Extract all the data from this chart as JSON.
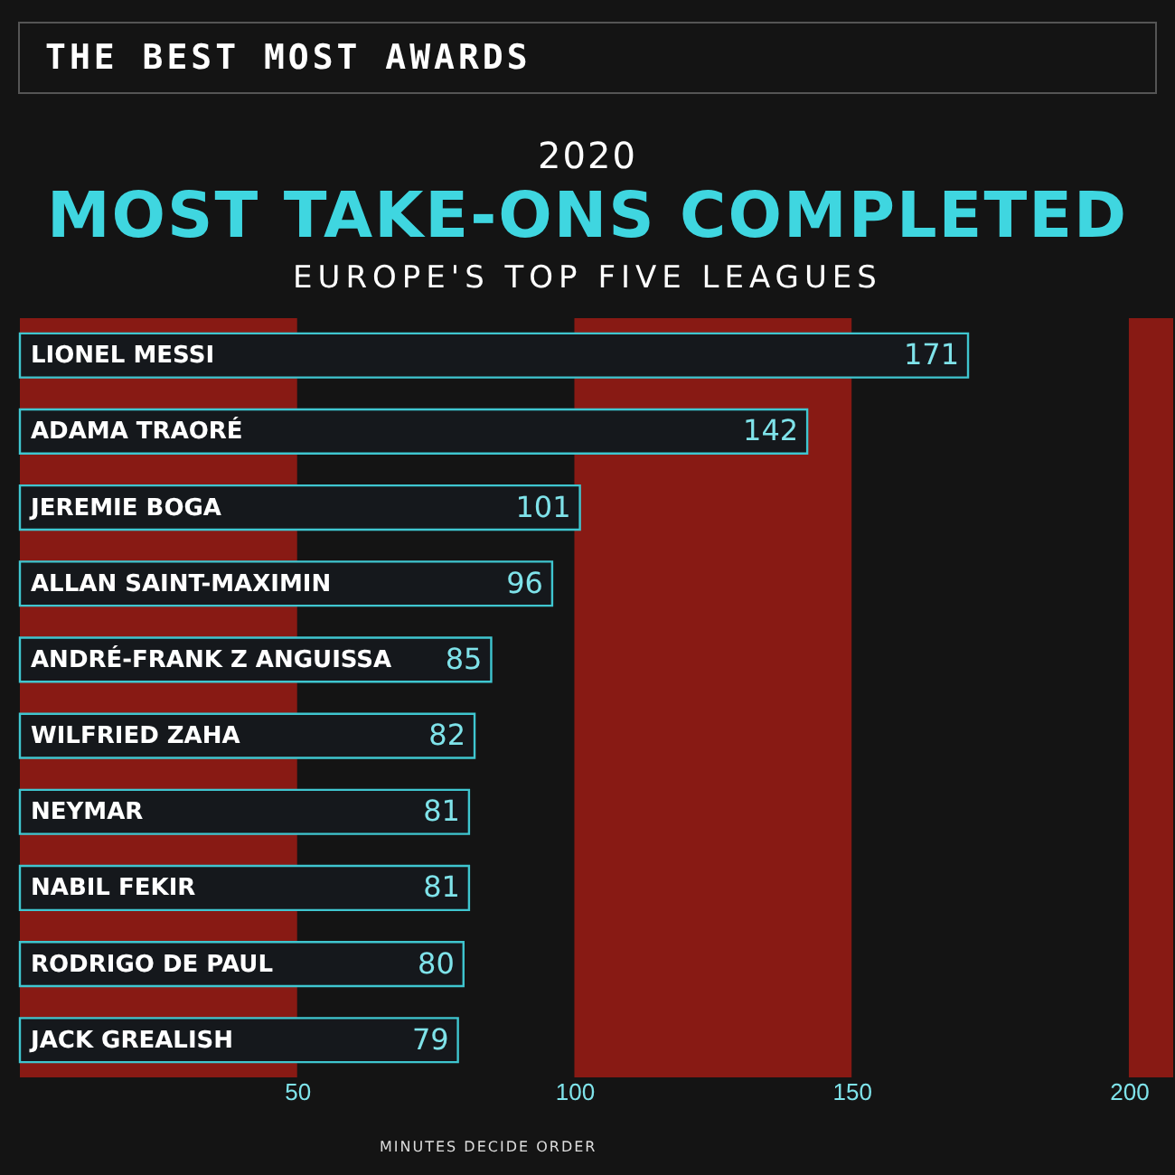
{
  "chart_data": {
    "type": "bar",
    "orientation": "horizontal",
    "title": "MOST TAKE-ONS COMPLETED",
    "subtitle": "EUROPE'S TOP FIVE LEAGUES",
    "annotations": [
      "THE BEST MOST AWARDS",
      "2020",
      "MINUTES DECIDE ORDER"
    ],
    "categories": [
      "LIONEL MESSI",
      "ADAMA TRAORÉ",
      "JEREMIE BOGA",
      "ALLAN SAINT-MAXIMIN",
      "ANDRÉ-FRANK Z ANGUISSA",
      "WILFRIED ZAHA",
      "NEYMAR",
      "NABIL FEKIR",
      "RODRIGO DE PAUL",
      "JACK GREALISH"
    ],
    "values": [
      171,
      142,
      101,
      96,
      85,
      82,
      81,
      81,
      80,
      79
    ],
    "color": "#15181c",
    "data_labels": true,
    "xlim": [
      0,
      208
    ],
    "xticks": [
      50,
      100,
      150,
      200
    ],
    "bands": [
      {
        "axis": "x",
        "from": 0,
        "to": 50,
        "color": "#9c1b14"
      },
      {
        "axis": "x",
        "from": 100,
        "to": 150,
        "color": "#9c1b14"
      },
      {
        "axis": "x",
        "from": 200,
        "to": 208,
        "color": "#9c1b14"
      }
    ]
  }
}
